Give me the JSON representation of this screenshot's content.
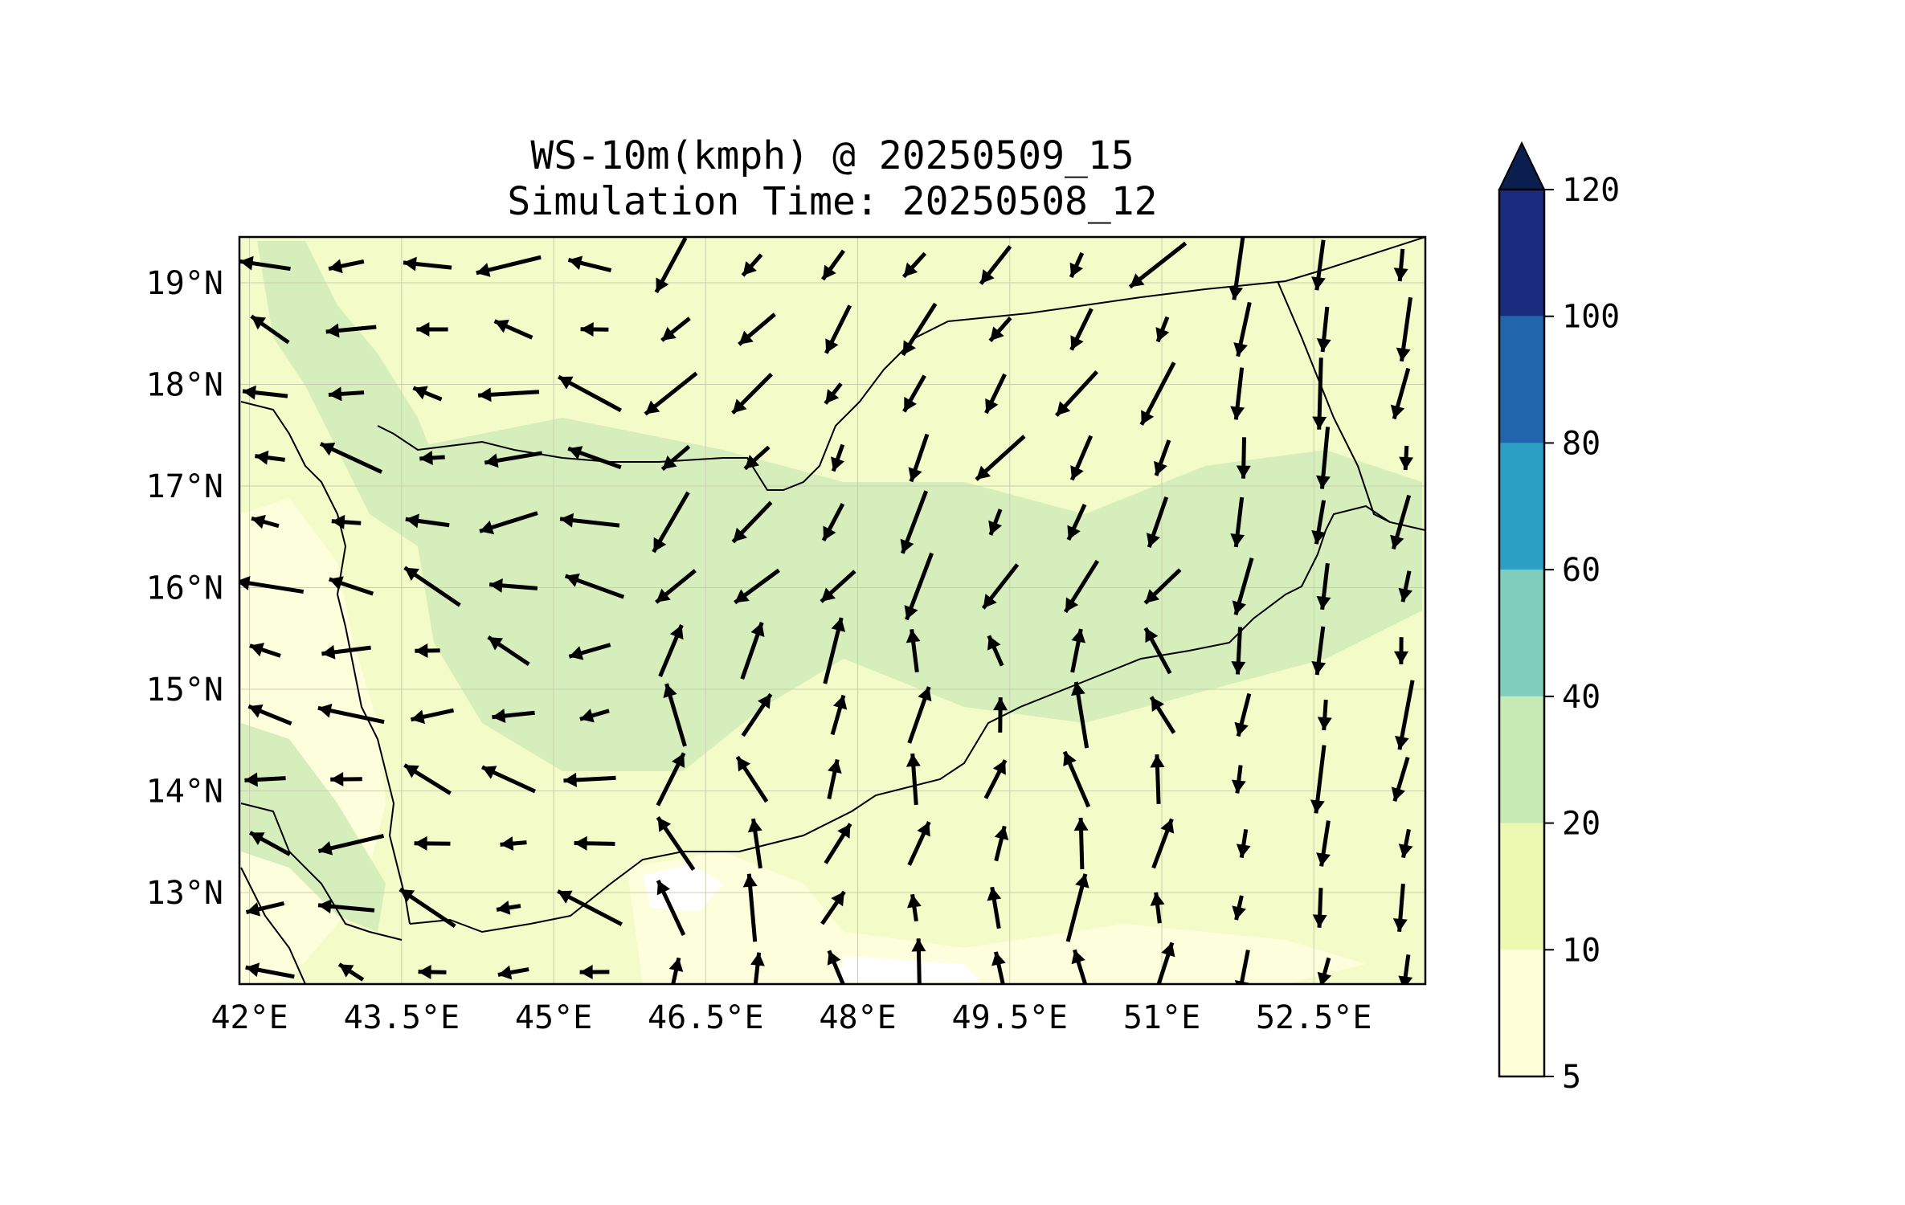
{
  "title": {
    "line1": "WS-10m(kmph) @ 20250509_15",
    "line2": "Simulation Time: 20250508_12"
  },
  "axes": {
    "lon_ticks": [
      "42°E",
      "43.5°E",
      "45°E",
      "46.5°E",
      "48°E",
      "49.5°E",
      "51°E",
      "52.5°E"
    ],
    "lat_ticks": [
      "19°N",
      "18°N",
      "17°N",
      "16°N",
      "15°N",
      "14°N",
      "13°N"
    ],
    "lon_range": [
      41.9,
      53.6
    ],
    "lat_range": [
      12.1,
      19.45
    ]
  },
  "colorbar": {
    "labels": [
      "120",
      "100",
      "80",
      "60",
      "40",
      "20",
      "10",
      "5"
    ],
    "levels": [
      5,
      10,
      20,
      40,
      60,
      80,
      100,
      120
    ],
    "colors": [
      "#ffffd9",
      "#edf8b1",
      "#c7e9b4",
      "#7fcdbb",
      "#2c9fc4",
      "#2166ac",
      "#1b2b80"
    ],
    "extend_color": "#0b1e50",
    "extend": "max"
  },
  "map": {
    "background_color": "#f3fbc8",
    "grid": true
  }
}
